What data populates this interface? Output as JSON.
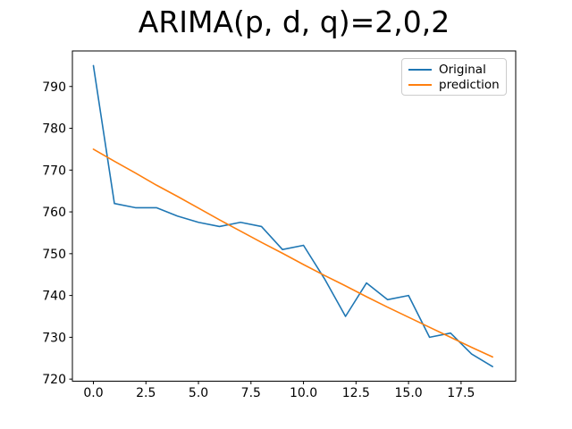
{
  "chart_data": {
    "type": "line",
    "title": "ARIMA(p, d, q)=2,0,2",
    "xlabel": "",
    "ylabel": "",
    "grid": false,
    "legend": {
      "position": "upper-right",
      "entries": [
        "Original",
        "prediction"
      ]
    },
    "x": [
      0,
      1,
      2,
      3,
      4,
      5,
      6,
      7,
      8,
      9,
      10,
      11,
      12,
      13,
      14,
      15,
      16,
      17,
      18,
      19
    ],
    "series": [
      {
        "name": "Original",
        "color": "#1f77b4",
        "values": [
          795,
          762,
          761,
          761,
          759,
          757.5,
          756.5,
          757.5,
          756.5,
          751,
          752,
          744,
          735,
          743,
          739,
          740,
          730,
          731,
          726,
          723
        ]
      },
      {
        "name": "prediction",
        "color": "#ff7f0e",
        "values": [
          775,
          772.1,
          769.3,
          766.4,
          763.7,
          760.9,
          758.1,
          755.4,
          752.7,
          750.1,
          747.4,
          744.8,
          742.3,
          739.7,
          737.2,
          734.8,
          732.4,
          730,
          727.6,
          725.3
        ]
      }
    ],
    "xlim": [
      -1.0,
      20.1
    ],
    "ylim": [
      719.5,
      798.5
    ],
    "xticks": {
      "values": [
        0,
        2.5,
        5,
        7.5,
        10,
        12.5,
        15,
        17.5
      ],
      "labels": [
        "0.0",
        "2.5",
        "5.0",
        "7.5",
        "10.0",
        "12.5",
        "15.0",
        "17.5"
      ]
    },
    "yticks": {
      "values": [
        720,
        730,
        740,
        750,
        760,
        770,
        780,
        790
      ],
      "labels": [
        "720",
        "730",
        "740",
        "750",
        "760",
        "770",
        "780",
        "790"
      ]
    },
    "axis_color": "#000000",
    "tick_label_color": "#000000"
  }
}
